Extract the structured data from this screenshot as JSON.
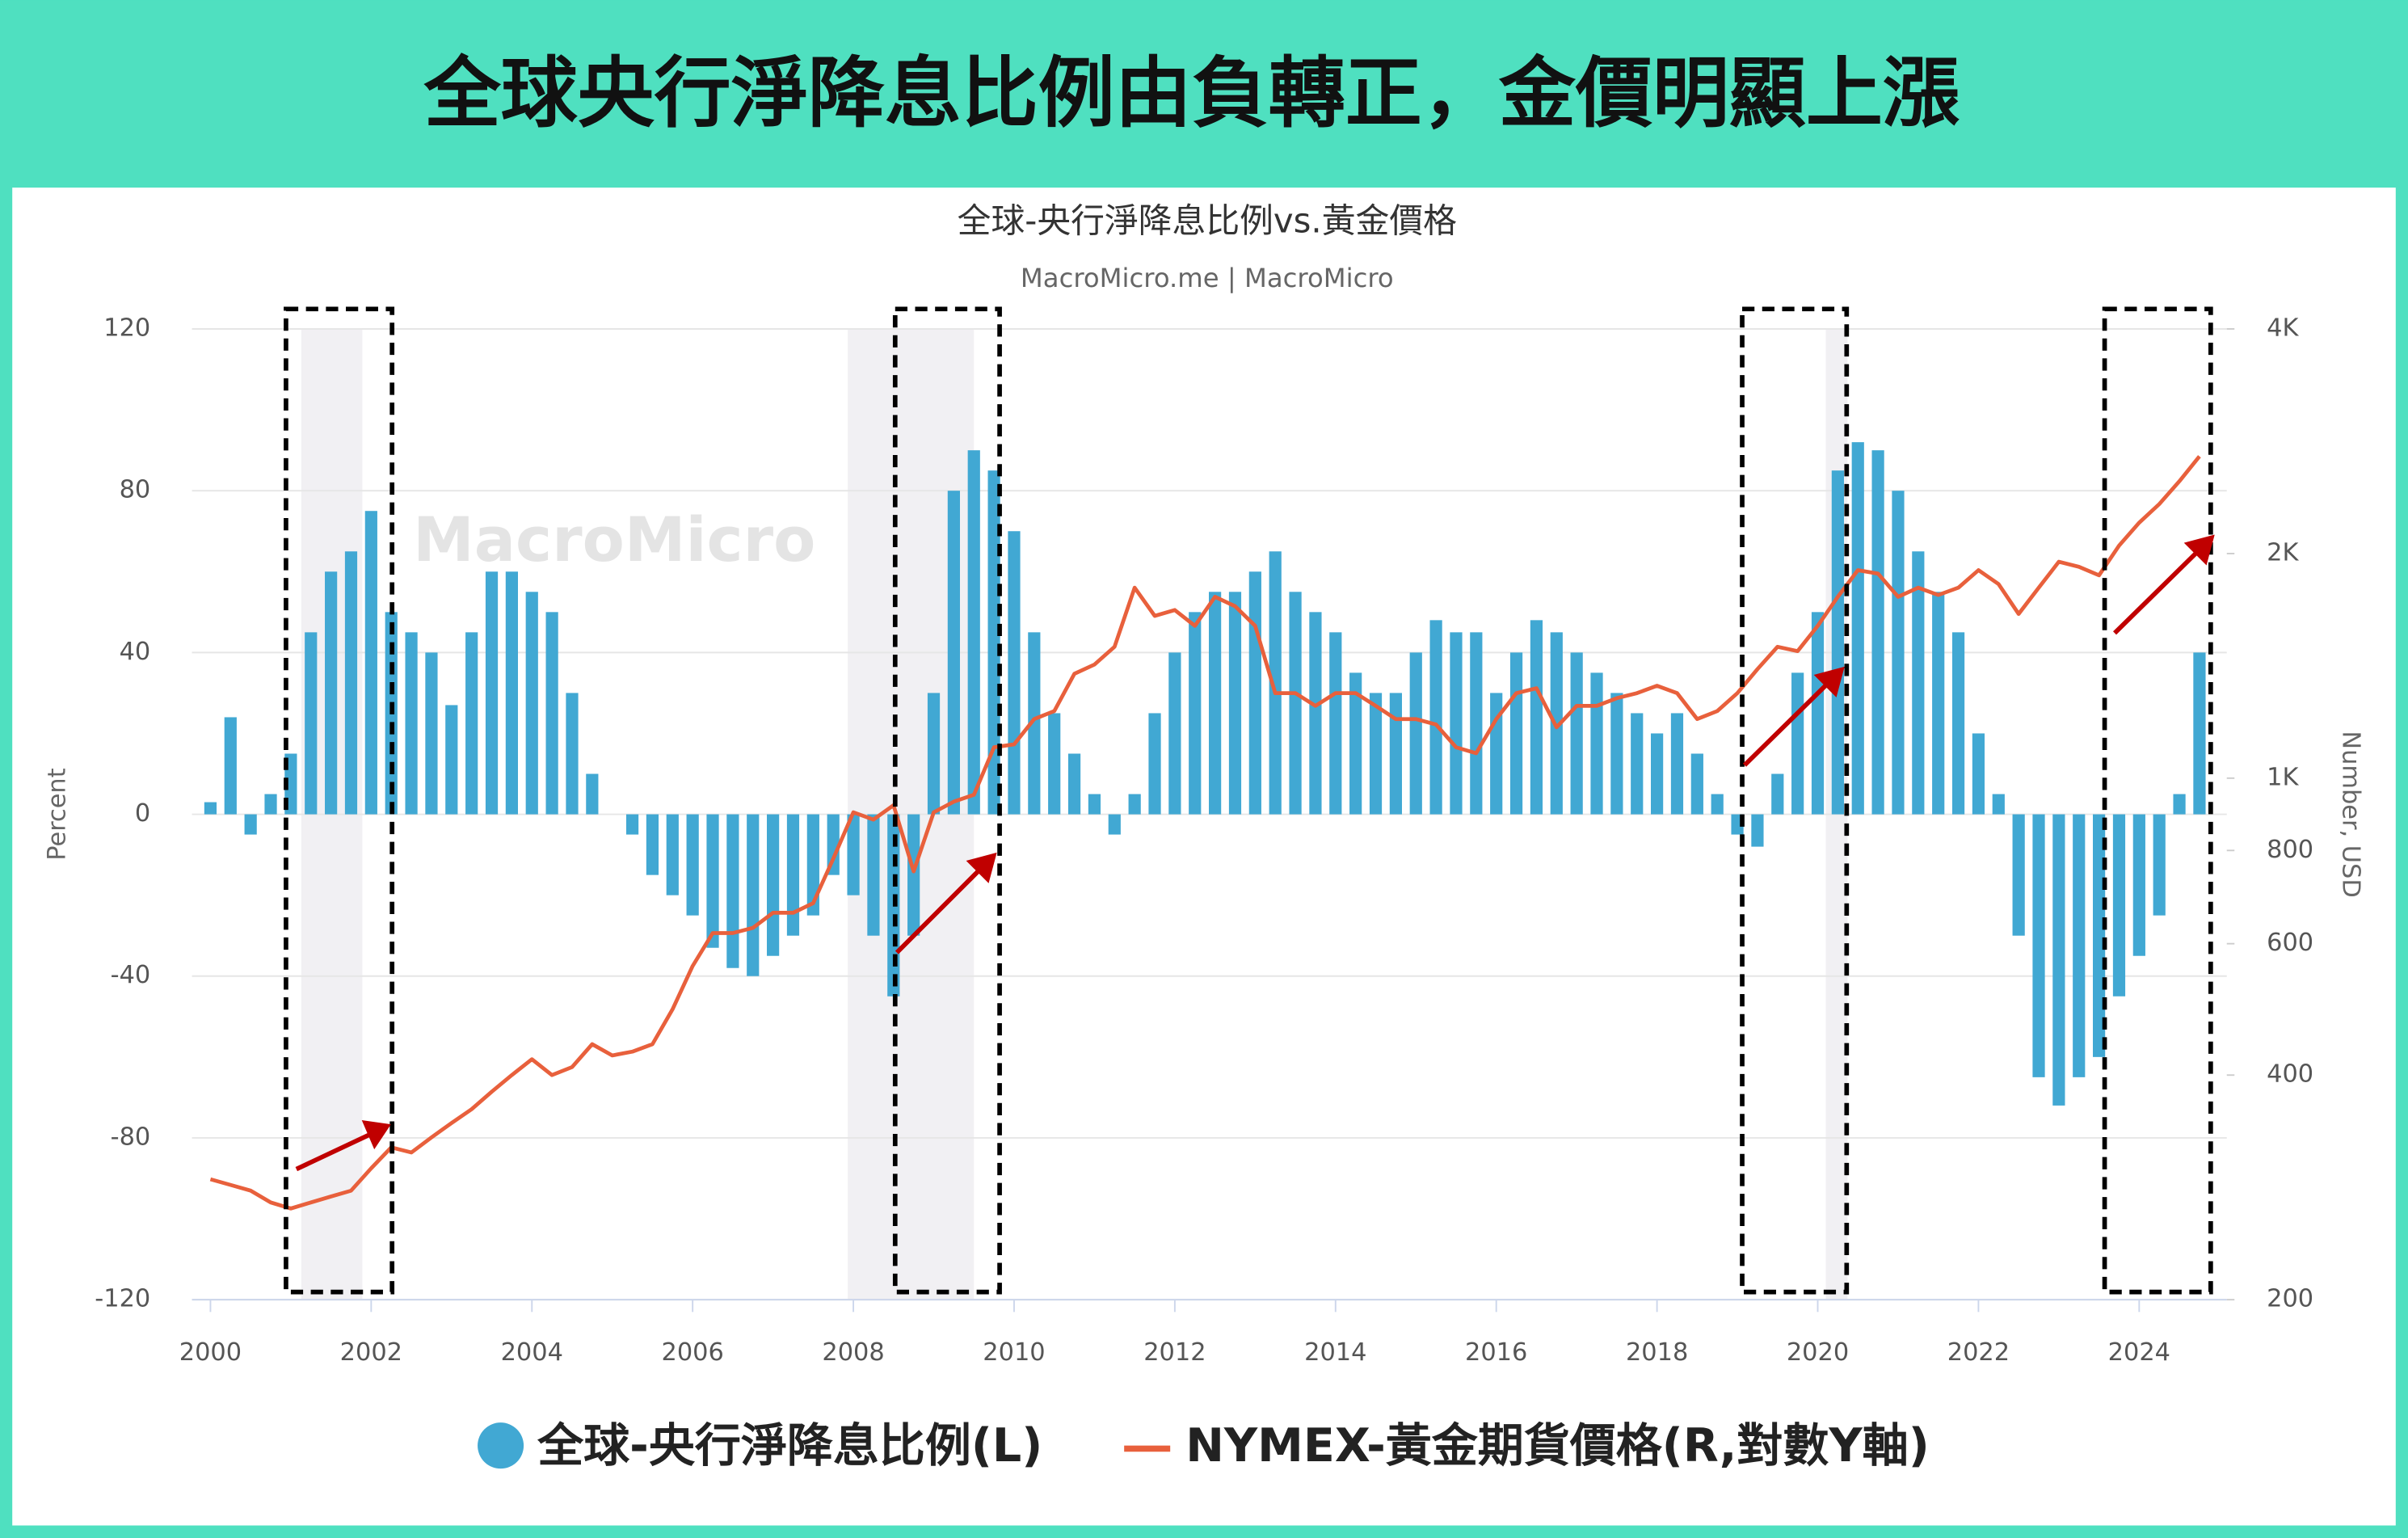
{
  "header": {
    "title": "全球央行淨降息比例由負轉正，金價明顯上漲"
  },
  "chart_data": {
    "type": "bar-line",
    "title": "全球-央行淨降息比例vs.黃金價格",
    "subtitle": "MacroMicro.me | MacroMicro",
    "watermark": "MacroMicro",
    "ylabel": "Percent",
    "y2label": "Number, USD",
    "xlim": [
      1999.77,
      2025.09
    ],
    "xticks": [
      2000,
      2002,
      2004,
      2006,
      2008,
      2010,
      2012,
      2014,
      2016,
      2018,
      2020,
      2022,
      2024
    ],
    "ylim": [
      -120,
      120
    ],
    "yticks": [
      -120,
      -80,
      -40,
      0,
      40,
      80,
      120
    ],
    "y2lim": [
      200,
      4000
    ],
    "y2scale": "log",
    "y2ticks": [
      200,
      400,
      600,
      800,
      {
        "value": 1000,
        "label": "1K"
      },
      {
        "value": 2000,
        "label": "2K"
      },
      {
        "value": 4000,
        "label": "4K"
      }
    ],
    "grid": true,
    "shaded_ranges": [
      [
        2001.13,
        2001.89
      ],
      [
        2007.93,
        2009.5
      ],
      [
        2020.1,
        2020.37
      ]
    ],
    "highlight_ranges": [
      [
        2000.94,
        2002.26
      ],
      [
        2008.52,
        2009.82
      ],
      [
        2019.06,
        2020.36
      ],
      [
        2023.57,
        2024.89
      ]
    ],
    "x": [
      2000,
      2000.25,
      2000.5,
      2000.75,
      2001,
      2001.25,
      2001.5,
      2001.75,
      2002,
      2002.25,
      2002.5,
      2002.75,
      2003,
      2003.25,
      2003.5,
      2003.75,
      2004,
      2004.25,
      2004.5,
      2004.75,
      2005,
      2005.25,
      2005.5,
      2005.75,
      2006,
      2006.25,
      2006.5,
      2006.75,
      2007,
      2007.25,
      2007.5,
      2007.75,
      2008,
      2008.25,
      2008.5,
      2008.75,
      2009,
      2009.25,
      2009.5,
      2009.75,
      2010,
      2010.25,
      2010.5,
      2010.75,
      2011,
      2011.25,
      2011.5,
      2011.75,
      2012,
      2012.25,
      2012.5,
      2012.75,
      2013,
      2013.25,
      2013.5,
      2013.75,
      2014,
      2014.25,
      2014.5,
      2014.75,
      2015,
      2015.25,
      2015.5,
      2015.75,
      2016,
      2016.25,
      2016.5,
      2016.75,
      2017,
      2017.25,
      2017.5,
      2017.75,
      2018,
      2018.25,
      2018.5,
      2018.75,
      2019,
      2019.25,
      2019.5,
      2019.75,
      2020,
      2020.25,
      2020.5,
      2020.75,
      2021,
      2021.25,
      2021.5,
      2021.75,
      2022,
      2022.25,
      2022.5,
      2022.75,
      2023,
      2023.25,
      2023.5,
      2023.75,
      2024,
      2024.25,
      2024.5,
      2024.75
    ],
    "series": [
      {
        "name": "全球-央行淨降息比例(L)",
        "color": "#41a8d3",
        "kind": "bar",
        "values": [
          3,
          24,
          -5,
          5,
          15,
          45,
          60,
          65,
          75,
          50,
          45,
          40,
          27,
          45,
          60,
          60,
          55,
          50,
          30,
          10,
          0,
          -5,
          -15,
          -20,
          -25,
          -33,
          -38,
          -40,
          -35,
          -30,
          -25,
          -15,
          -20,
          -30,
          -45,
          -30,
          30,
          80,
          90,
          85,
          70,
          45,
          25,
          15,
          5,
          -5,
          5,
          25,
          40,
          50,
          55,
          55,
          60,
          65,
          55,
          50,
          45,
          35,
          30,
          30,
          40,
          48,
          45,
          45,
          30,
          40,
          48,
          45,
          40,
          35,
          30,
          25,
          20,
          25,
          15,
          5,
          -5,
          -8,
          10,
          35,
          50,
          85,
          92,
          90,
          80,
          65,
          55,
          45,
          20,
          5,
          -30,
          -65,
          -72,
          -65,
          -60,
          -45,
          -35,
          -25,
          5,
          40
        ]
      },
      {
        "name": "NYMEX-黃金期貨價格(R,對數Y軸)",
        "color": "#e8603c",
        "kind": "line",
        "axis": "y2",
        "values": [
          290,
          285,
          280,
          270,
          265,
          270,
          275,
          280,
          300,
          320,
          315,
          330,
          345,
          360,
          380,
          400,
          420,
          400,
          410,
          440,
          425,
          430,
          440,
          490,
          560,
          620,
          620,
          630,
          660,
          660,
          680,
          780,
          900,
          880,
          920,
          750,
          900,
          930,
          950,
          1100,
          1110,
          1200,
          1230,
          1380,
          1420,
          1500,
          1800,
          1650,
          1680,
          1600,
          1750,
          1700,
          1600,
          1300,
          1300,
          1250,
          1300,
          1300,
          1250,
          1200,
          1200,
          1180,
          1100,
          1080,
          1200,
          1300,
          1320,
          1170,
          1250,
          1250,
          1280,
          1300,
          1330,
          1300,
          1200,
          1230,
          1300,
          1400,
          1500,
          1480,
          1600,
          1750,
          1900,
          1880,
          1750,
          1800,
          1760,
          1800,
          1900,
          1820,
          1660,
          1800,
          1950,
          1920,
          1870,
          2050,
          2200,
          2330,
          2500,
          2700
        ]
      }
    ]
  }
}
